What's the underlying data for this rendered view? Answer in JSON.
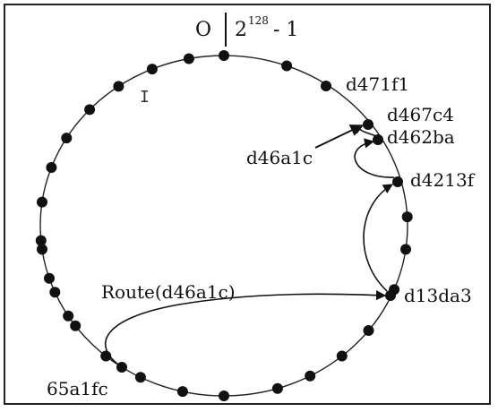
{
  "header": {
    "zero": "O",
    "power_base": "2",
    "power_exp": "128",
    "power_suffix": "- 1"
  },
  "ring": {
    "node_count_unlabeled": 26
  },
  "labels": {
    "d471f1": "d471f1",
    "d467c4": "d467c4",
    "d462ba": "d462ba",
    "d46a1c": "d46a1c",
    "d4213f": "d4213f",
    "d13da3": "d13da3",
    "route": "Route(d46a1c)",
    "origin": "65a1fc"
  },
  "colors": {
    "node": "#111111",
    "line": "#222222"
  }
}
